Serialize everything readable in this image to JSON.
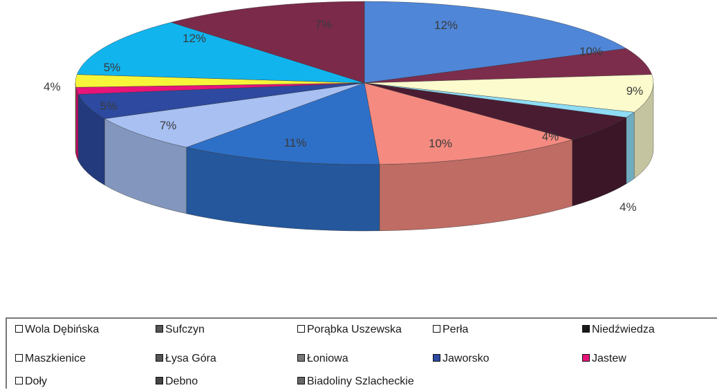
{
  "chart_data": {
    "type": "pie",
    "title": "",
    "slices": [
      {
        "label": "12%",
        "color": "#4f86d8"
      },
      {
        "label": "10%",
        "color": "#7d2d4c"
      },
      {
        "label": "9%",
        "color": "#fbfbcd"
      },
      {
        "label": "",
        "color": "#8fdcf5"
      },
      {
        "label": "4%",
        "color": "#4a1c32"
      },
      {
        "label": "10%",
        "color": "#f48a80"
      },
      {
        "label": "11%",
        "color": "#2e70c8"
      },
      {
        "label": "7%",
        "color": "#a8c0f2"
      },
      {
        "label": "5%",
        "color": "#2d4aa0"
      },
      {
        "label": "4%",
        "color": "#e8147a"
      },
      {
        "label": "5%",
        "color": "#f7f53a"
      },
      {
        "label": "12%",
        "color": "#12b4ee"
      },
      {
        "label": "7%",
        "color": "#7b2a4a"
      }
    ],
    "outside_labels": [
      "4%",
      "4%"
    ],
    "legend": [
      {
        "name": "Wola Dębińska",
        "color": "#ffffff"
      },
      {
        "name": "Sufczyn",
        "color": "#555555"
      },
      {
        "name": "Porąbka Uszewska",
        "color": "#ffffff"
      },
      {
        "name": "Perła",
        "color": "#ffffff"
      },
      {
        "name": "Niedźwiedza",
        "color": "#1a1a1a"
      },
      {
        "name": "Maszkienice",
        "color": "#ffffff"
      },
      {
        "name": "Łysa Góra",
        "color": "#555555"
      },
      {
        "name": "Łoniowa",
        "color": "#777777"
      },
      {
        "name": "Jaworsko",
        "color": "#2d4aa0"
      },
      {
        "name": "Jastew",
        "color": "#e8147a"
      },
      {
        "name": "Doły",
        "color": "#ffffff"
      },
      {
        "name": "Debno",
        "color": "#444444"
      },
      {
        "name": "Biadoliny Szlacheckie",
        "color": "#666666"
      }
    ]
  }
}
